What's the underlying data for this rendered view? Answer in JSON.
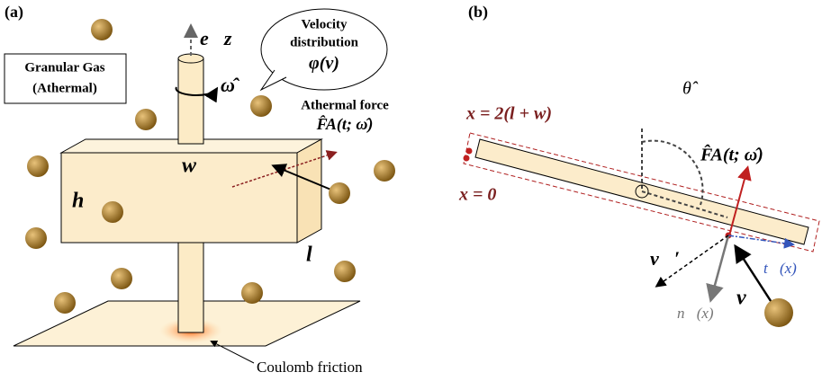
{
  "panel_a": {
    "label": "(a)",
    "gas_box": [
      "Granular Gas",
      "(Athermal)"
    ],
    "bubble": [
      "Velocity",
      "distribution",
      "φ(v)"
    ],
    "axis_label": "e⃗z",
    "rotation_label": "ω̂",
    "force_label": "Athermal force",
    "force_symbol": "F̂A(t; ω̂)",
    "width_label": "w",
    "height_label": "h",
    "length_label": "l",
    "friction_label": "Coulomb friction"
  },
  "panel_b": {
    "label": "(b)",
    "x_end": "x = 2(l + w)",
    "x_start": "x = 0",
    "angle": "θ̂",
    "force_symbol": "F̂A(t; ω̂)",
    "v_prime": "v⃗′",
    "v": "v⃗",
    "tangent": "t⃗(x)",
    "normal": "n⃗(x)"
  }
}
